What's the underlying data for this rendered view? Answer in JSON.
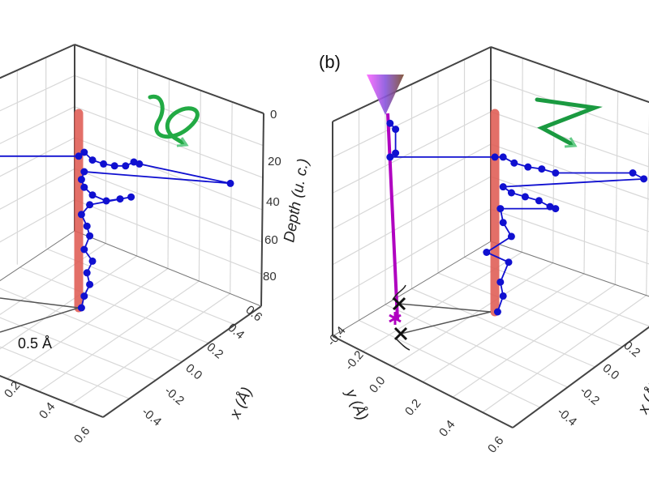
{
  "chart_data": [
    {
      "type": "scatter-3d",
      "panel_label": "",
      "zlabel": "Depth (u. c.)",
      "xlabel": "x (Å)",
      "ylabel": "",
      "z_ticks": [
        "0",
        "20",
        "40",
        "60",
        "80"
      ],
      "x_ticks": [
        "0.6",
        "0.4",
        "0.2",
        "0.0",
        "-0.2",
        "-0.4"
      ],
      "y_ticks": [
        "0.6",
        "0.4",
        "0.2"
      ],
      "annotation": "0.5 Å",
      "grid": true,
      "colors": {
        "trajectory": "#1010d0",
        "rod": "#e06058",
        "arrow": "#22aa44",
        "frame": "#444444"
      },
      "trajectory": [
        {
          "t": -0.3,
          "depth": 22
        },
        {
          "t": 0.0,
          "depth": 22
        },
        {
          "t": 0.02,
          "depth": 20
        },
        {
          "t": 0.05,
          "depth": 24
        },
        {
          "t": 0.09,
          "depth": 26
        },
        {
          "t": 0.13,
          "depth": 27
        },
        {
          "t": 0.17,
          "depth": 27
        },
        {
          "t": 0.2,
          "depth": 25
        },
        {
          "t": 0.22,
          "depth": 26
        },
        {
          "t": 0.55,
          "depth": 36
        },
        {
          "t": 0.02,
          "depth": 30
        },
        {
          "t": 0.01,
          "depth": 34
        },
        {
          "t": 0.02,
          "depth": 38
        },
        {
          "t": 0.05,
          "depth": 42
        },
        {
          "t": 0.1,
          "depth": 45
        },
        {
          "t": 0.15,
          "depth": 44
        },
        {
          "t": 0.19,
          "depth": 43
        },
        {
          "t": 0.04,
          "depth": 47
        },
        {
          "t": 0.01,
          "depth": 52
        },
        {
          "t": 0.03,
          "depth": 58
        },
        {
          "t": 0.04,
          "depth": 63
        },
        {
          "t": 0.02,
          "depth": 70
        },
        {
          "t": 0.05,
          "depth": 76
        },
        {
          "t": 0.03,
          "depth": 82
        },
        {
          "t": 0.04,
          "depth": 88
        },
        {
          "t": 0.02,
          "depth": 94
        },
        {
          "t": 0.01,
          "depth": 100
        }
      ]
    },
    {
      "type": "scatter-3d",
      "panel_label": "(b)",
      "zlabel": "",
      "xlabel": "x (Å)",
      "ylabel": "y (Å)",
      "x_ticks": [
        "0.2",
        "0.0",
        "-0.2",
        "-0.4"
      ],
      "y_ticks": [
        "-0.4",
        "-0.2",
        "0.0",
        "0.2",
        "0.4",
        "0.6"
      ],
      "grid": true,
      "colors": {
        "trajectory": "#1010d0",
        "rod": "#e06058",
        "arrow": "#22aa44",
        "probe": "#b000c0",
        "marker": "#111111"
      },
      "trajectory": [
        {
          "t": -0.38,
          "depth": 5
        },
        {
          "t": -0.36,
          "depth": 8
        },
        {
          "t": -0.36,
          "depth": 20
        },
        {
          "t": -0.38,
          "depth": 22
        },
        {
          "t": 0.0,
          "depth": 22
        },
        {
          "t": 0.03,
          "depth": 22
        },
        {
          "t": 0.07,
          "depth": 25
        },
        {
          "t": 0.12,
          "depth": 27
        },
        {
          "t": 0.17,
          "depth": 28
        },
        {
          "t": 0.22,
          "depth": 30
        },
        {
          "t": 0.5,
          "depth": 30
        },
        {
          "t": 0.54,
          "depth": 33
        },
        {
          "t": 0.03,
          "depth": 37
        },
        {
          "t": 0.06,
          "depth": 40
        },
        {
          "t": 0.11,
          "depth": 42
        },
        {
          "t": 0.16,
          "depth": 44
        },
        {
          "t": 0.2,
          "depth": 47
        },
        {
          "t": 0.22,
          "depth": 48
        },
        {
          "t": 0.02,
          "depth": 48
        },
        {
          "t": 0.03,
          "depth": 55
        },
        {
          "t": 0.06,
          "depth": 62
        },
        {
          "t": -0.03,
          "depth": 70
        },
        {
          "t": 0.05,
          "depth": 75
        },
        {
          "t": 0.02,
          "depth": 85
        },
        {
          "t": 0.03,
          "depth": 92
        },
        {
          "t": 0.01,
          "depth": 100
        }
      ]
    }
  ]
}
